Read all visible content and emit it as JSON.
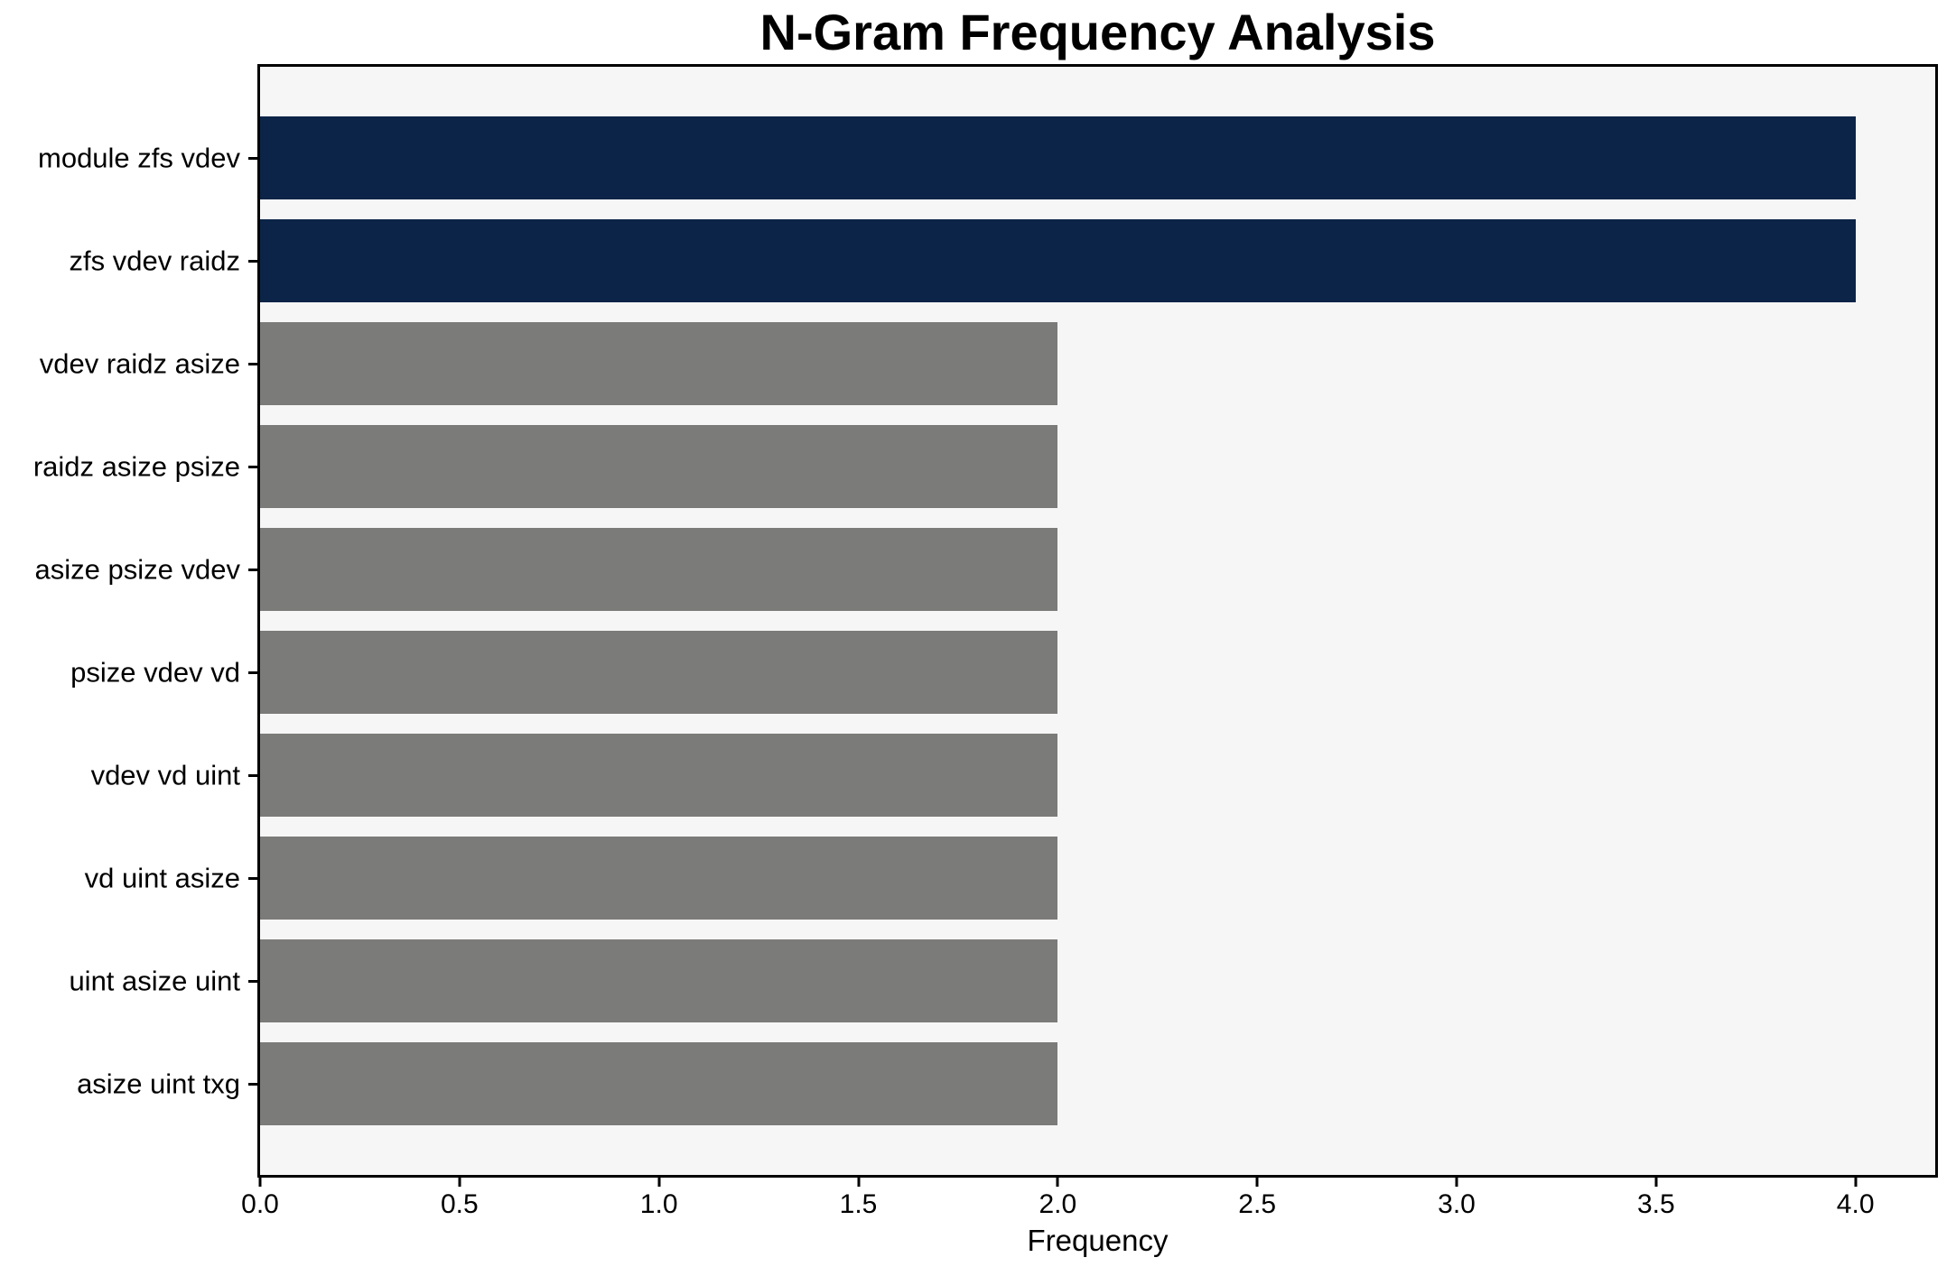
{
  "chart_data": {
    "type": "bar",
    "orientation": "horizontal",
    "title": "N-Gram Frequency Analysis",
    "xlabel": "Frequency",
    "ylabel": "",
    "categories": [
      "module zfs vdev",
      "zfs vdev raidz",
      "vdev raidz asize",
      "raidz asize psize",
      "asize psize vdev",
      "psize vdev vd",
      "vdev vd uint",
      "vd uint asize",
      "uint asize uint",
      "asize uint txg"
    ],
    "values": [
      4,
      4,
      2,
      2,
      2,
      2,
      2,
      2,
      2,
      2
    ],
    "bar_colors": [
      "#0b2447",
      "#0b2447",
      "#7b7b79",
      "#7b7b79",
      "#7b7b79",
      "#7b7b79",
      "#7b7b79",
      "#7b7b79",
      "#7b7b79",
      "#7b7b79"
    ],
    "highlight_color": "#0b2447",
    "default_color": "#7b7b79",
    "xlim": [
      0,
      4.2
    ],
    "xticks": [
      0,
      0.5,
      1.0,
      1.5,
      2.0,
      2.5,
      3.0,
      3.5,
      4.0
    ],
    "xtick_labels": [
      "0.0",
      "0.5",
      "1.0",
      "1.5",
      "2.0",
      "2.5",
      "3.0",
      "3.5",
      "4.0"
    ],
    "grid": false,
    "legend": null,
    "plot_background": "#f7f6f6",
    "figure_background": "#ffffff",
    "bar_height_fraction": 0.8
  }
}
